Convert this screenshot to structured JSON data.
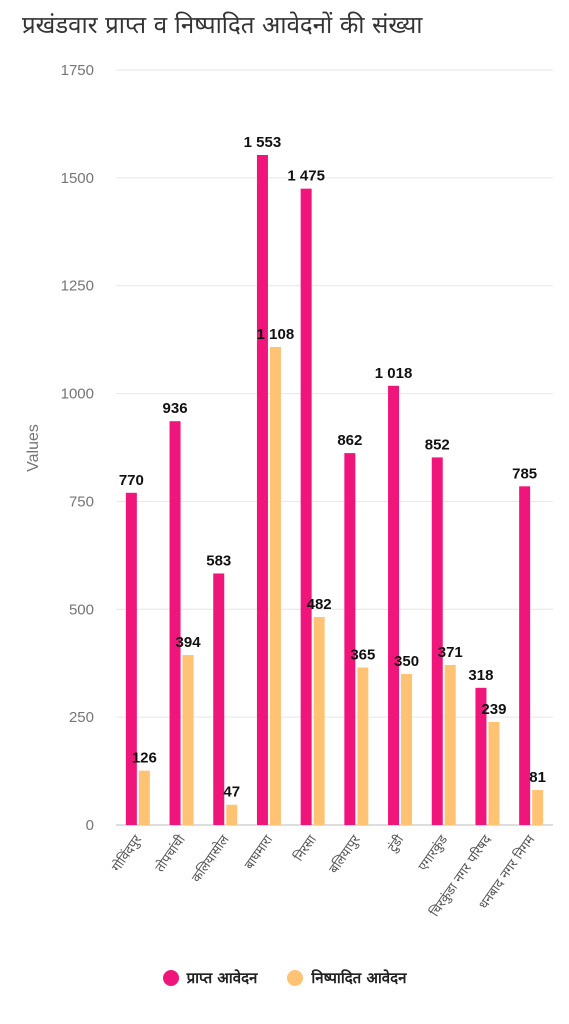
{
  "title": "प्रखंडवार प्राप्त व निष्पादित आवेदनों की संख्या",
  "colors": {
    "received": "#F0157A",
    "disposed": "#FFC373",
    "grid": "#E6E6E6"
  },
  "legend": {
    "received": "प्राप्त आवेदन",
    "disposed": "निष्पादित आवेदन"
  },
  "chart_data": {
    "type": "bar",
    "title": "प्रखंडवार प्राप्त व निष्पादित आवेदनों की संख्या",
    "xlabel": "",
    "ylabel": "Values",
    "ylim": [
      0,
      1750
    ],
    "yticks": [
      "0",
      "250",
      "500",
      "750",
      "1000",
      "1250",
      "1500",
      "1750"
    ],
    "grid": true,
    "legend_position": "bottom",
    "categories": [
      "गोविंदपुर",
      "तोपचांची",
      "कलियासोल",
      "बाघमारा",
      "निरसा",
      "बलियापुर",
      "टुंडी",
      "एगारकुंड",
      "चिरकुंडा नगर परिषद",
      "धनबाद नगर निगम"
    ],
    "series": [
      {
        "name": "प्राप्त आवेदन",
        "values": [
          770,
          936,
          583,
          1553,
          1475,
          862,
          1018,
          852,
          318,
          785
        ],
        "labels": [
          "770",
          "936",
          "583",
          "1 553",
          "1 475",
          "862",
          "1 018",
          "852",
          "318",
          "785"
        ]
      },
      {
        "name": "निष्पादित आवेदन",
        "values": [
          126,
          394,
          47,
          1108,
          482,
          365,
          350,
          371,
          239,
          81
        ],
        "labels": [
          "126",
          "394",
          "47",
          "1 108",
          "482",
          "365",
          "350",
          "371",
          "239",
          "81"
        ]
      }
    ]
  }
}
